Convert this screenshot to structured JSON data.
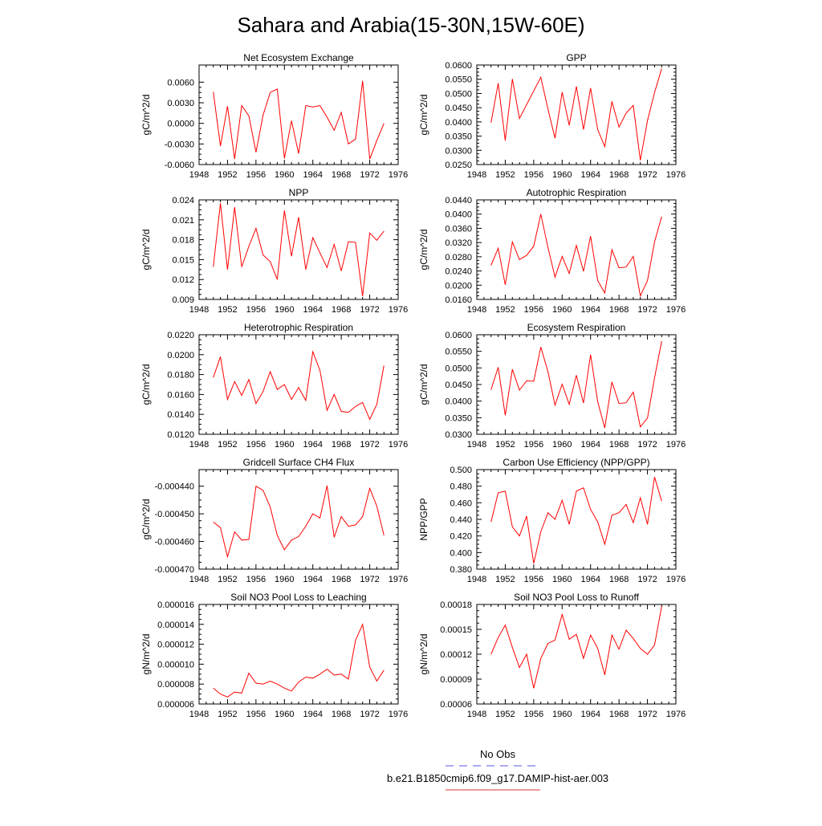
{
  "figure": {
    "title": "Sahara and Arabia(15-30N,15W-60E)"
  },
  "legend": {
    "entries": [
      {
        "label": "No Obs",
        "color": "#5555dd",
        "style": "dashed"
      },
      {
        "label": "b.e21.B1850cmip6.f09_g17.DAMIP-hist-aer.003",
        "color": "#dd3333",
        "style": "solid"
      }
    ]
  },
  "chart_data": [
    {
      "type": "line",
      "title": "Net Ecosystem Exchange",
      "ylabel": "gC/m^2/d",
      "xlim": [
        1948,
        1976
      ],
      "xticks": [
        "1948",
        "1952",
        "1956",
        "1960",
        "1964",
        "1968",
        "1972",
        "1976"
      ],
      "ylim": [
        -0.006,
        0.0085
      ],
      "yticks": [
        "-0.0060",
        "-0.0030",
        "0.0000",
        "0.0030",
        "0.0060"
      ],
      "ytick_values": [
        -0.006,
        -0.003,
        0.0,
        0.003,
        0.006
      ],
      "series": [
        {
          "color": "#ff0000",
          "x": [
            1950,
            1951,
            1952,
            1953,
            1954,
            1955,
            1956,
            1957,
            1958,
            1959,
            1960,
            1961,
            1962,
            1963,
            1964,
            1965,
            1966,
            1967,
            1968,
            1969,
            1970,
            1971,
            1972,
            1973,
            1974
          ],
          "y": [
            0.0046,
            -0.0033,
            0.0025,
            -0.0052,
            0.0026,
            0.0011,
            -0.0042,
            0.0012,
            0.0045,
            0.005,
            -0.0051,
            0.0004,
            -0.0044,
            0.0026,
            0.0024,
            0.0026,
            0.0009,
            -0.001,
            0.0016,
            -0.003,
            -0.0023,
            0.0062,
            -0.0052,
            -0.0025,
            0.0
          ]
        }
      ]
    },
    {
      "type": "line",
      "title": "GPP",
      "ylabel": "gC/m^2/d",
      "xlim": [
        1948,
        1976
      ],
      "xticks": [
        "1948",
        "1952",
        "1956",
        "1960",
        "1964",
        "1968",
        "1972",
        "1976"
      ],
      "ylim": [
        0.025,
        0.06
      ],
      "yticks": [
        "0.0250",
        "0.0300",
        "0.0350",
        "0.0400",
        "0.0450",
        "0.0500",
        "0.0550",
        "0.0600"
      ],
      "ytick_values": [
        0.025,
        0.03,
        0.035,
        0.04,
        0.045,
        0.05,
        0.055,
        0.06
      ],
      "series": [
        {
          "color": "#ff0000",
          "x": [
            1950,
            1951,
            1952,
            1953,
            1954,
            1957,
            1958,
            1959,
            1960,
            1961,
            1962,
            1963,
            1964,
            1965,
            1966,
            1967,
            1968,
            1969,
            1970,
            1971,
            1972,
            1973,
            1974
          ],
          "y": [
            0.0397,
            0.0536,
            0.0335,
            0.0551,
            0.0412,
            0.0557,
            0.0445,
            0.0343,
            0.0505,
            0.0388,
            0.0525,
            0.0373,
            0.0519,
            0.0373,
            0.0313,
            0.0472,
            0.0382,
            0.0431,
            0.0458,
            0.0265,
            0.0405,
            0.0503,
            0.0588
          ]
        }
      ]
    },
    {
      "type": "line",
      "title": "NPP",
      "ylabel": "gC/m^2/d",
      "xlim": [
        1948,
        1976
      ],
      "xticks": [
        "1948",
        "1952",
        "1956",
        "1960",
        "1964",
        "1968",
        "1972",
        "1976"
      ],
      "ylim": [
        0.009,
        0.024
      ],
      "yticks": [
        "0.009",
        "0.012",
        "0.015",
        "0.018",
        "0.021",
        "0.024"
      ],
      "ytick_values": [
        0.009,
        0.012,
        0.015,
        0.018,
        0.021,
        0.024
      ],
      "series": [
        {
          "color": "#ff0000",
          "x": [
            1950,
            1951,
            1952,
            1953,
            1954,
            1955,
            1956,
            1957,
            1958,
            1959,
            1960,
            1961,
            1962,
            1963,
            1964,
            1965,
            1966,
            1967,
            1968,
            1969,
            1970,
            1971,
            1972,
            1973,
            1974
          ],
          "y": [
            0.0139,
            0.0235,
            0.0135,
            0.0229,
            0.0139,
            0.017,
            0.0197,
            0.0157,
            0.0147,
            0.012,
            0.0224,
            0.0155,
            0.0214,
            0.0135,
            0.0183,
            0.016,
            0.0138,
            0.0173,
            0.0133,
            0.0177,
            0.0176,
            0.0095,
            0.019,
            0.0179,
            0.0193
          ]
        }
      ]
    },
    {
      "type": "line",
      "title": "Autotrophic Respiration",
      "ylabel": "gC/m^2/d",
      "xlim": [
        1948,
        1976
      ],
      "xticks": [
        "1948",
        "1952",
        "1956",
        "1960",
        "1964",
        "1968",
        "1972",
        "1976"
      ],
      "ylim": [
        0.016,
        0.044
      ],
      "yticks": [
        "0.0160",
        "0.0200",
        "0.0240",
        "0.0280",
        "0.0320",
        "0.0360",
        "0.0400",
        "0.0440"
      ],
      "ytick_values": [
        0.016,
        0.02,
        0.024,
        0.028,
        0.032,
        0.036,
        0.04,
        0.044
      ],
      "series": [
        {
          "color": "#ff0000",
          "x": [
            1950,
            1951,
            1952,
            1953,
            1954,
            1955,
            1956,
            1957,
            1958,
            1959,
            1960,
            1961,
            1962,
            1963,
            1964,
            1965,
            1966,
            1967,
            1968,
            1969,
            1970,
            1971,
            1972,
            1973,
            1974
          ],
          "y": [
            0.0256,
            0.0304,
            0.0201,
            0.0322,
            0.0272,
            0.0284,
            0.031,
            0.04,
            0.0306,
            0.0223,
            0.0281,
            0.0233,
            0.0312,
            0.0239,
            0.0338,
            0.0213,
            0.0178,
            0.03,
            0.0249,
            0.0251,
            0.0281,
            0.017,
            0.0213,
            0.0322,
            0.0393
          ]
        }
      ]
    },
    {
      "type": "line",
      "title": "Heterotrophic Respiration",
      "ylabel": "gC/m^2/d",
      "xlim": [
        1948,
        1976
      ],
      "xticks": [
        "1948",
        "1952",
        "1956",
        "1960",
        "1964",
        "1968",
        "1972",
        "1976"
      ],
      "ylim": [
        0.012,
        0.022
      ],
      "yticks": [
        "0.0120",
        "0.0140",
        "0.0160",
        "0.0180",
        "0.0200",
        "0.0220"
      ],
      "ytick_values": [
        0.012,
        0.014,
        0.016,
        0.018,
        0.02,
        0.022
      ],
      "series": [
        {
          "color": "#ff0000",
          "x": [
            1950,
            1951,
            1952,
            1953,
            1954,
            1955,
            1956,
            1957,
            1958,
            1959,
            1960,
            1961,
            1962,
            1963,
            1964,
            1965,
            1966,
            1967,
            1968,
            1969,
            1970,
            1971,
            1972,
            1973,
            1974
          ],
          "y": [
            0.0177,
            0.0198,
            0.0155,
            0.0173,
            0.0159,
            0.0175,
            0.0151,
            0.0163,
            0.0183,
            0.0165,
            0.017,
            0.0155,
            0.0167,
            0.0154,
            0.0203,
            0.0184,
            0.0144,
            0.016,
            0.0143,
            0.0142,
            0.0148,
            0.0152,
            0.0135,
            0.015,
            0.0189
          ]
        }
      ]
    },
    {
      "type": "line",
      "title": "Ecosystem Respiration",
      "ylabel": "gC/m^2/d",
      "xlim": [
        1948,
        1976
      ],
      "xticks": [
        "1948",
        "1952",
        "1956",
        "1960",
        "1964",
        "1968",
        "1972",
        "1976"
      ],
      "ylim": [
        0.03,
        0.06
      ],
      "yticks": [
        "0.0300",
        "0.0350",
        "0.0400",
        "0.0450",
        "0.0500",
        "0.0550",
        "0.0600"
      ],
      "ytick_values": [
        0.03,
        0.035,
        0.04,
        0.045,
        0.05,
        0.055,
        0.06
      ],
      "series": [
        {
          "color": "#ff0000",
          "x": [
            1950,
            1951,
            1952,
            1953,
            1954,
            1955,
            1956,
            1957,
            1958,
            1959,
            1960,
            1961,
            1962,
            1963,
            1964,
            1965,
            1966,
            1967,
            1968,
            1969,
            1970,
            1971,
            1972,
            1973,
            1974
          ],
          "y": [
            0.0434,
            0.0502,
            0.0357,
            0.0496,
            0.0433,
            0.0461,
            0.046,
            0.0563,
            0.0489,
            0.0388,
            0.0451,
            0.039,
            0.0478,
            0.0394,
            0.054,
            0.0398,
            0.0319,
            0.0458,
            0.0393,
            0.0395,
            0.0427,
            0.0322,
            0.0349,
            0.047,
            0.0581
          ]
        }
      ]
    },
    {
      "type": "line",
      "title": "Gridcell Surface CH4 Flux",
      "ylabel": "gC/m^2/d",
      "xlim": [
        1948,
        1976
      ],
      "xticks": [
        "1948",
        "1952",
        "1956",
        "1960",
        "1964",
        "1968",
        "1972",
        "1976"
      ],
      "ylim": [
        -0.00047,
        -0.000434
      ],
      "yticks": [
        "-0.000470",
        "-0.000460",
        "-0.000450",
        "-0.000440"
      ],
      "ytick_values": [
        -0.00047,
        -0.00046,
        -0.00045,
        -0.00044
      ],
      "series": [
        {
          "color": "#ff0000",
          "x": [
            1950,
            1951,
            1952,
            1953,
            1954,
            1955,
            1956,
            1957,
            1958,
            1959,
            1960,
            1961,
            1962,
            1963,
            1964,
            1965,
            1966,
            1967,
            1968,
            1969,
            1970,
            1971,
            1972,
            1973,
            1974
          ],
          "y": [
            -0.000453,
            -0.000455,
            -0.0004655,
            -0.0004565,
            -0.0004595,
            -0.0004593,
            -0.00044,
            -0.0004415,
            -0.0004475,
            -0.0004578,
            -0.000463,
            -0.0004595,
            -0.0004582,
            -0.0004545,
            -0.00045,
            -0.0004515,
            -0.0004398,
            -0.0004585,
            -0.000451,
            -0.0004545,
            -0.000454,
            -0.000451,
            -0.0004408,
            -0.0004472,
            -0.0004578
          ]
        }
      ]
    },
    {
      "type": "line",
      "title": "Carbon Use Efficiency (NPP/GPP)",
      "ylabel": "NPP/GPP",
      "xlim": [
        1948,
        1976
      ],
      "xticks": [
        "1948",
        "1952",
        "1956",
        "1960",
        "1964",
        "1968",
        "1972",
        "1976"
      ],
      "ylim": [
        0.38,
        0.5
      ],
      "yticks": [
        "0.380",
        "0.400",
        "0.420",
        "0.440",
        "0.460",
        "0.480",
        "0.500"
      ],
      "ytick_values": [
        0.38,
        0.4,
        0.42,
        0.44,
        0.46,
        0.48,
        0.5
      ],
      "series": [
        {
          "color": "#ff0000",
          "x": [
            1950,
            1951,
            1952,
            1953,
            1954,
            1955,
            1956,
            1957,
            1958,
            1959,
            1960,
            1961,
            1962,
            1963,
            1964,
            1965,
            1966,
            1967,
            1968,
            1969,
            1970,
            1971,
            1972,
            1973,
            1974
          ],
          "y": [
            0.437,
            0.472,
            0.474,
            0.431,
            0.42,
            0.444,
            0.387,
            0.425,
            0.448,
            0.44,
            0.463,
            0.434,
            0.474,
            0.478,
            0.452,
            0.437,
            0.41,
            0.445,
            0.448,
            0.458,
            0.436,
            0.466,
            0.434,
            0.491,
            0.462
          ]
        }
      ]
    },
    {
      "type": "line",
      "title": "Soil NO3 Pool Loss to Leaching",
      "ylabel": "gN/m^2/d",
      "xlim": [
        1948,
        1976
      ],
      "xticks": [
        "1948",
        "1952",
        "1956",
        "1960",
        "1964",
        "1968",
        "1972",
        "1976"
      ],
      "ylim": [
        6e-06,
        1.6e-05
      ],
      "yticks": [
        "0.000006",
        "0.000008",
        "0.000010",
        "0.000012",
        "0.000014",
        "0.000016"
      ],
      "ytick_values": [
        6e-06,
        8e-06,
        1e-05,
        1.2e-05,
        1.4e-05,
        1.6e-05
      ],
      "series": [
        {
          "color": "#ff0000",
          "x": [
            1950,
            1951,
            1952,
            1953,
            1954,
            1955,
            1956,
            1957,
            1958,
            1959,
            1960,
            1961,
            1962,
            1963,
            1964,
            1965,
            1966,
            1967,
            1968,
            1969,
            1970,
            1971,
            1972,
            1973,
            1974
          ],
          "y": [
            7.6e-06,
            7e-06,
            6.7e-06,
            7.2e-06,
            7.1e-06,
            9.1e-06,
            8.1e-06,
            8e-06,
            8.3e-06,
            8e-06,
            7.6e-06,
            7.3e-06,
            8.2e-06,
            8.7e-06,
            8.6e-06,
            9e-06,
            9.5e-06,
            8.9e-06,
            9e-06,
            8.5e-06,
            1.24e-05,
            1.4e-05,
            9.7e-06,
            8.3e-06,
            9.4e-06
          ]
        }
      ]
    },
    {
      "type": "line",
      "title": "Soil NO3 Pool Loss to Runoff",
      "ylabel": "gN/m^2/d",
      "xlim": [
        1948,
        1976
      ],
      "xticks": [
        "1948",
        "1952",
        "1956",
        "1960",
        "1964",
        "1968",
        "1972",
        "1976"
      ],
      "ylim": [
        6e-05,
        0.00018
      ],
      "yticks": [
        "0.00006",
        "0.00009",
        "0.00012",
        "0.00015",
        "0.00018"
      ],
      "ytick_values": [
        6e-05,
        9e-05,
        0.00012,
        0.00015,
        0.00018
      ],
      "series": [
        {
          "color": "#ff0000",
          "x": [
            1950,
            1951,
            1952,
            1953,
            1954,
            1955,
            1956,
            1957,
            1958,
            1959,
            1960,
            1961,
            1962,
            1963,
            1964,
            1965,
            1966,
            1967,
            1968,
            1969,
            1970,
            1971,
            1972,
            1973,
            1974
          ],
          "y": [
            0.00012,
            0.00014,
            0.000155,
            0.000128,
            0.000104,
            0.00012,
            7.9e-05,
            0.000115,
            0.000133,
            0.000137,
            0.000168,
            0.000138,
            0.000144,
            0.000115,
            0.000143,
            0.000127,
            9.5e-05,
            0.000143,
            0.000126,
            0.000149,
            0.000139,
            0.000127,
            0.00012,
            0.000131,
            0.000178
          ]
        }
      ]
    }
  ]
}
